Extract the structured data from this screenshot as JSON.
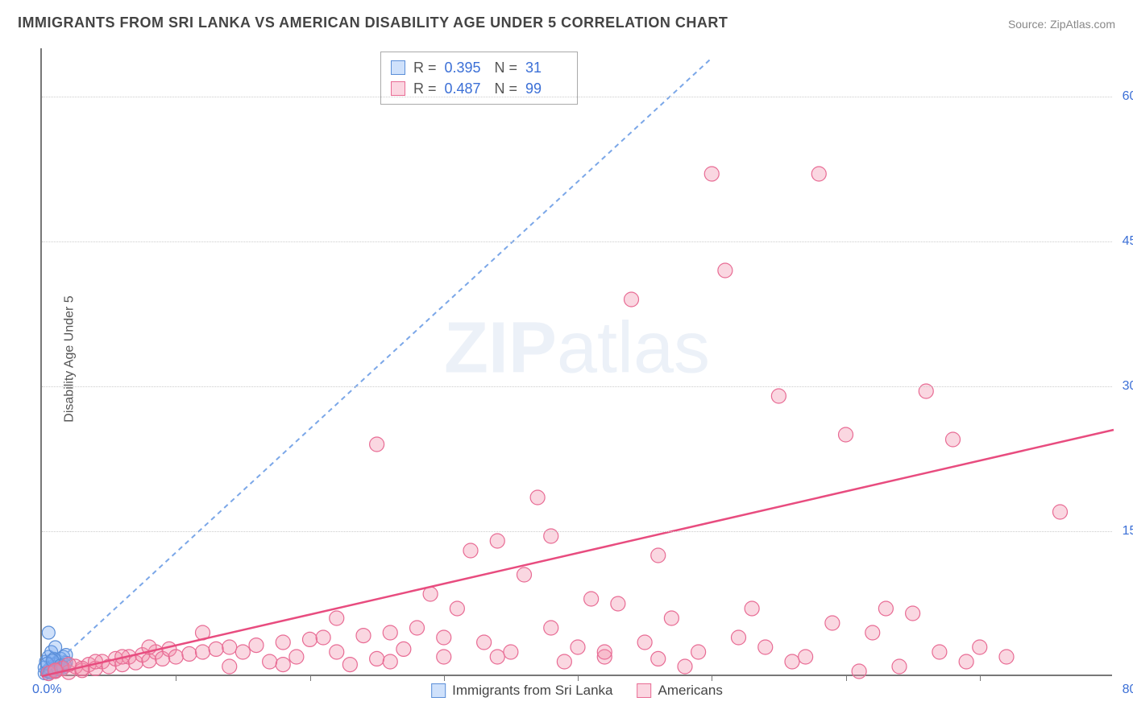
{
  "title": "IMMIGRANTS FROM SRI LANKA VS AMERICAN DISABILITY AGE UNDER 5 CORRELATION CHART",
  "source": "Source: ZipAtlas.com",
  "ylabel": "Disability Age Under 5",
  "watermark_bold": "ZIP",
  "watermark_rest": "atlas",
  "chart": {
    "type": "scatter",
    "xlim": [
      0,
      80
    ],
    "ylim": [
      0,
      65
    ],
    "x_origin_label": "0.0%",
    "x_max_label": "80.0%",
    "y_ticks": [
      15.0,
      30.0,
      45.0,
      60.0
    ],
    "y_tick_labels": [
      "15.0%",
      "30.0%",
      "45.0%",
      "60.0%"
    ],
    "x_tick_step": 10,
    "background_color": "#ffffff",
    "grid_color": "#cccccc",
    "axis_color": "#777777",
    "tick_label_color": "#3b6fd6",
    "title_fontsize": 18,
    "label_fontsize": 16
  },
  "series": [
    {
      "name": "Immigrants from Sri Lanka",
      "marker_color_fill": "rgba(120,170,240,0.35)",
      "marker_color_stroke": "#5a8ed8",
      "swatch_fill": "#cfe1fb",
      "swatch_border": "#5a8ed8",
      "marker_radius": 8,
      "R": "0.395",
      "N": "31",
      "regression": {
        "x1": 0,
        "y1": 0,
        "x2": 50,
        "y2": 64,
        "stroke": "#7ba7e8",
        "dash": "6,5",
        "width": 2
      },
      "points": [
        [
          0.2,
          0.3
        ],
        [
          0.4,
          0.5
        ],
        [
          0.5,
          0.2
        ],
        [
          0.6,
          0.8
        ],
        [
          0.7,
          0.4
        ],
        [
          0.8,
          1.0
        ],
        [
          0.9,
          0.6
        ],
        [
          1.0,
          1.2
        ],
        [
          1.1,
          0.7
        ],
        [
          1.2,
          1.5
        ],
        [
          1.3,
          0.9
        ],
        [
          1.4,
          1.8
        ],
        [
          1.5,
          1.0
        ],
        [
          1.6,
          2.0
        ],
        [
          1.7,
          1.2
        ],
        [
          1.8,
          2.2
        ],
        [
          0.3,
          1.5
        ],
        [
          0.5,
          2.0
        ],
        [
          0.7,
          2.5
        ],
        [
          0.9,
          1.8
        ],
        [
          0.2,
          0.9
        ],
        [
          0.4,
          1.3
        ],
        [
          0.6,
          0.4
        ],
        [
          0.8,
          1.6
        ],
        [
          1.0,
          0.5
        ],
        [
          1.2,
          0.8
        ],
        [
          1.4,
          1.1
        ],
        [
          1.6,
          0.9
        ],
        [
          1.8,
          1.4
        ],
        [
          0.5,
          4.5
        ],
        [
          1.0,
          3.0
        ]
      ]
    },
    {
      "name": "Americans",
      "marker_color_fill": "rgba(240,140,170,0.35)",
      "marker_color_stroke": "#e86b94",
      "swatch_fill": "#fbd6e1",
      "swatch_border": "#e86b94",
      "marker_radius": 9,
      "R": "0.487",
      "N": "99",
      "regression": {
        "x1": 0,
        "y1": 0,
        "x2": 80,
        "y2": 25.5,
        "stroke": "#e84c7f",
        "dash": "",
        "width": 2.5
      },
      "points": [
        [
          0.5,
          0.3
        ],
        [
          1,
          0.5
        ],
        [
          1.5,
          0.8
        ],
        [
          2,
          0.4
        ],
        [
          2.5,
          1.0
        ],
        [
          3,
          0.6
        ],
        [
          3.5,
          1.2
        ],
        [
          4,
          0.8
        ],
        [
          4.5,
          1.5
        ],
        [
          5,
          1.0
        ],
        [
          5.5,
          1.8
        ],
        [
          6,
          1.2
        ],
        [
          6.5,
          2.0
        ],
        [
          7,
          1.4
        ],
        [
          7.5,
          2.2
        ],
        [
          8,
          1.6
        ],
        [
          8.5,
          2.5
        ],
        [
          9,
          1.8
        ],
        [
          9.5,
          2.8
        ],
        [
          10,
          2.0
        ],
        [
          11,
          2.3
        ],
        [
          12,
          2.5
        ],
        [
          13,
          2.8
        ],
        [
          14,
          3.0
        ],
        [
          15,
          2.5
        ],
        [
          16,
          3.2
        ],
        [
          17,
          1.5
        ],
        [
          18,
          3.5
        ],
        [
          19,
          2.0
        ],
        [
          20,
          3.8
        ],
        [
          21,
          4.0
        ],
        [
          22,
          2.5
        ],
        [
          23,
          1.2
        ],
        [
          24,
          4.2
        ],
        [
          25,
          1.8
        ],
        [
          26,
          4.5
        ],
        [
          27,
          2.8
        ],
        [
          28,
          5.0
        ],
        [
          29,
          8.5
        ],
        [
          30,
          2.0
        ],
        [
          31,
          7.0
        ],
        [
          32,
          13.0
        ],
        [
          33,
          3.5
        ],
        [
          34,
          14.0
        ],
        [
          35,
          2.5
        ],
        [
          36,
          10.5
        ],
        [
          37,
          18.5
        ],
        [
          38,
          14.5
        ],
        [
          39,
          1.5
        ],
        [
          40,
          3.0
        ],
        [
          41,
          8.0
        ],
        [
          42,
          2.0
        ],
        [
          43,
          7.5
        ],
        [
          44,
          39.0
        ],
        [
          45,
          3.5
        ],
        [
          46,
          12.5
        ],
        [
          47,
          6.0
        ],
        [
          48,
          1.0
        ],
        [
          49,
          2.5
        ],
        [
          50,
          52.0
        ],
        [
          51,
          42.0
        ],
        [
          52,
          4.0
        ],
        [
          53,
          7.0
        ],
        [
          54,
          3.0
        ],
        [
          55,
          29.0
        ],
        [
          56,
          1.5
        ],
        [
          57,
          2.0
        ],
        [
          58,
          52.0
        ],
        [
          59,
          5.5
        ],
        [
          60,
          25.0
        ],
        [
          61,
          0.5
        ],
        [
          62,
          4.5
        ],
        [
          63,
          7.0
        ],
        [
          64,
          1.0
        ],
        [
          65,
          6.5
        ],
        [
          66,
          29.5
        ],
        [
          67,
          2.5
        ],
        [
          68,
          24.5
        ],
        [
          69,
          1.5
        ],
        [
          70,
          3.0
        ],
        [
          72,
          2.0
        ],
        [
          76,
          17.0
        ],
        [
          25,
          24.0
        ],
        [
          12,
          4.5
        ],
        [
          8,
          3.0
        ],
        [
          6,
          2.0
        ],
        [
          4,
          1.5
        ],
        [
          3,
          0.8
        ],
        [
          2,
          1.2
        ],
        [
          1,
          0.6
        ],
        [
          14,
          1.0
        ],
        [
          18,
          1.2
        ],
        [
          22,
          6.0
        ],
        [
          26,
          1.5
        ],
        [
          30,
          4.0
        ],
        [
          34,
          2.0
        ],
        [
          38,
          5.0
        ],
        [
          42,
          2.5
        ],
        [
          46,
          1.8
        ]
      ]
    }
  ],
  "legend_stats_labels": {
    "R": "R =",
    "N": "N ="
  },
  "legend_bottom": [
    {
      "swatch_fill": "#cfe1fb",
      "swatch_border": "#5a8ed8",
      "label": "Immigrants from Sri Lanka"
    },
    {
      "swatch_fill": "#fbd6e1",
      "swatch_border": "#e86b94",
      "label": "Americans"
    }
  ]
}
